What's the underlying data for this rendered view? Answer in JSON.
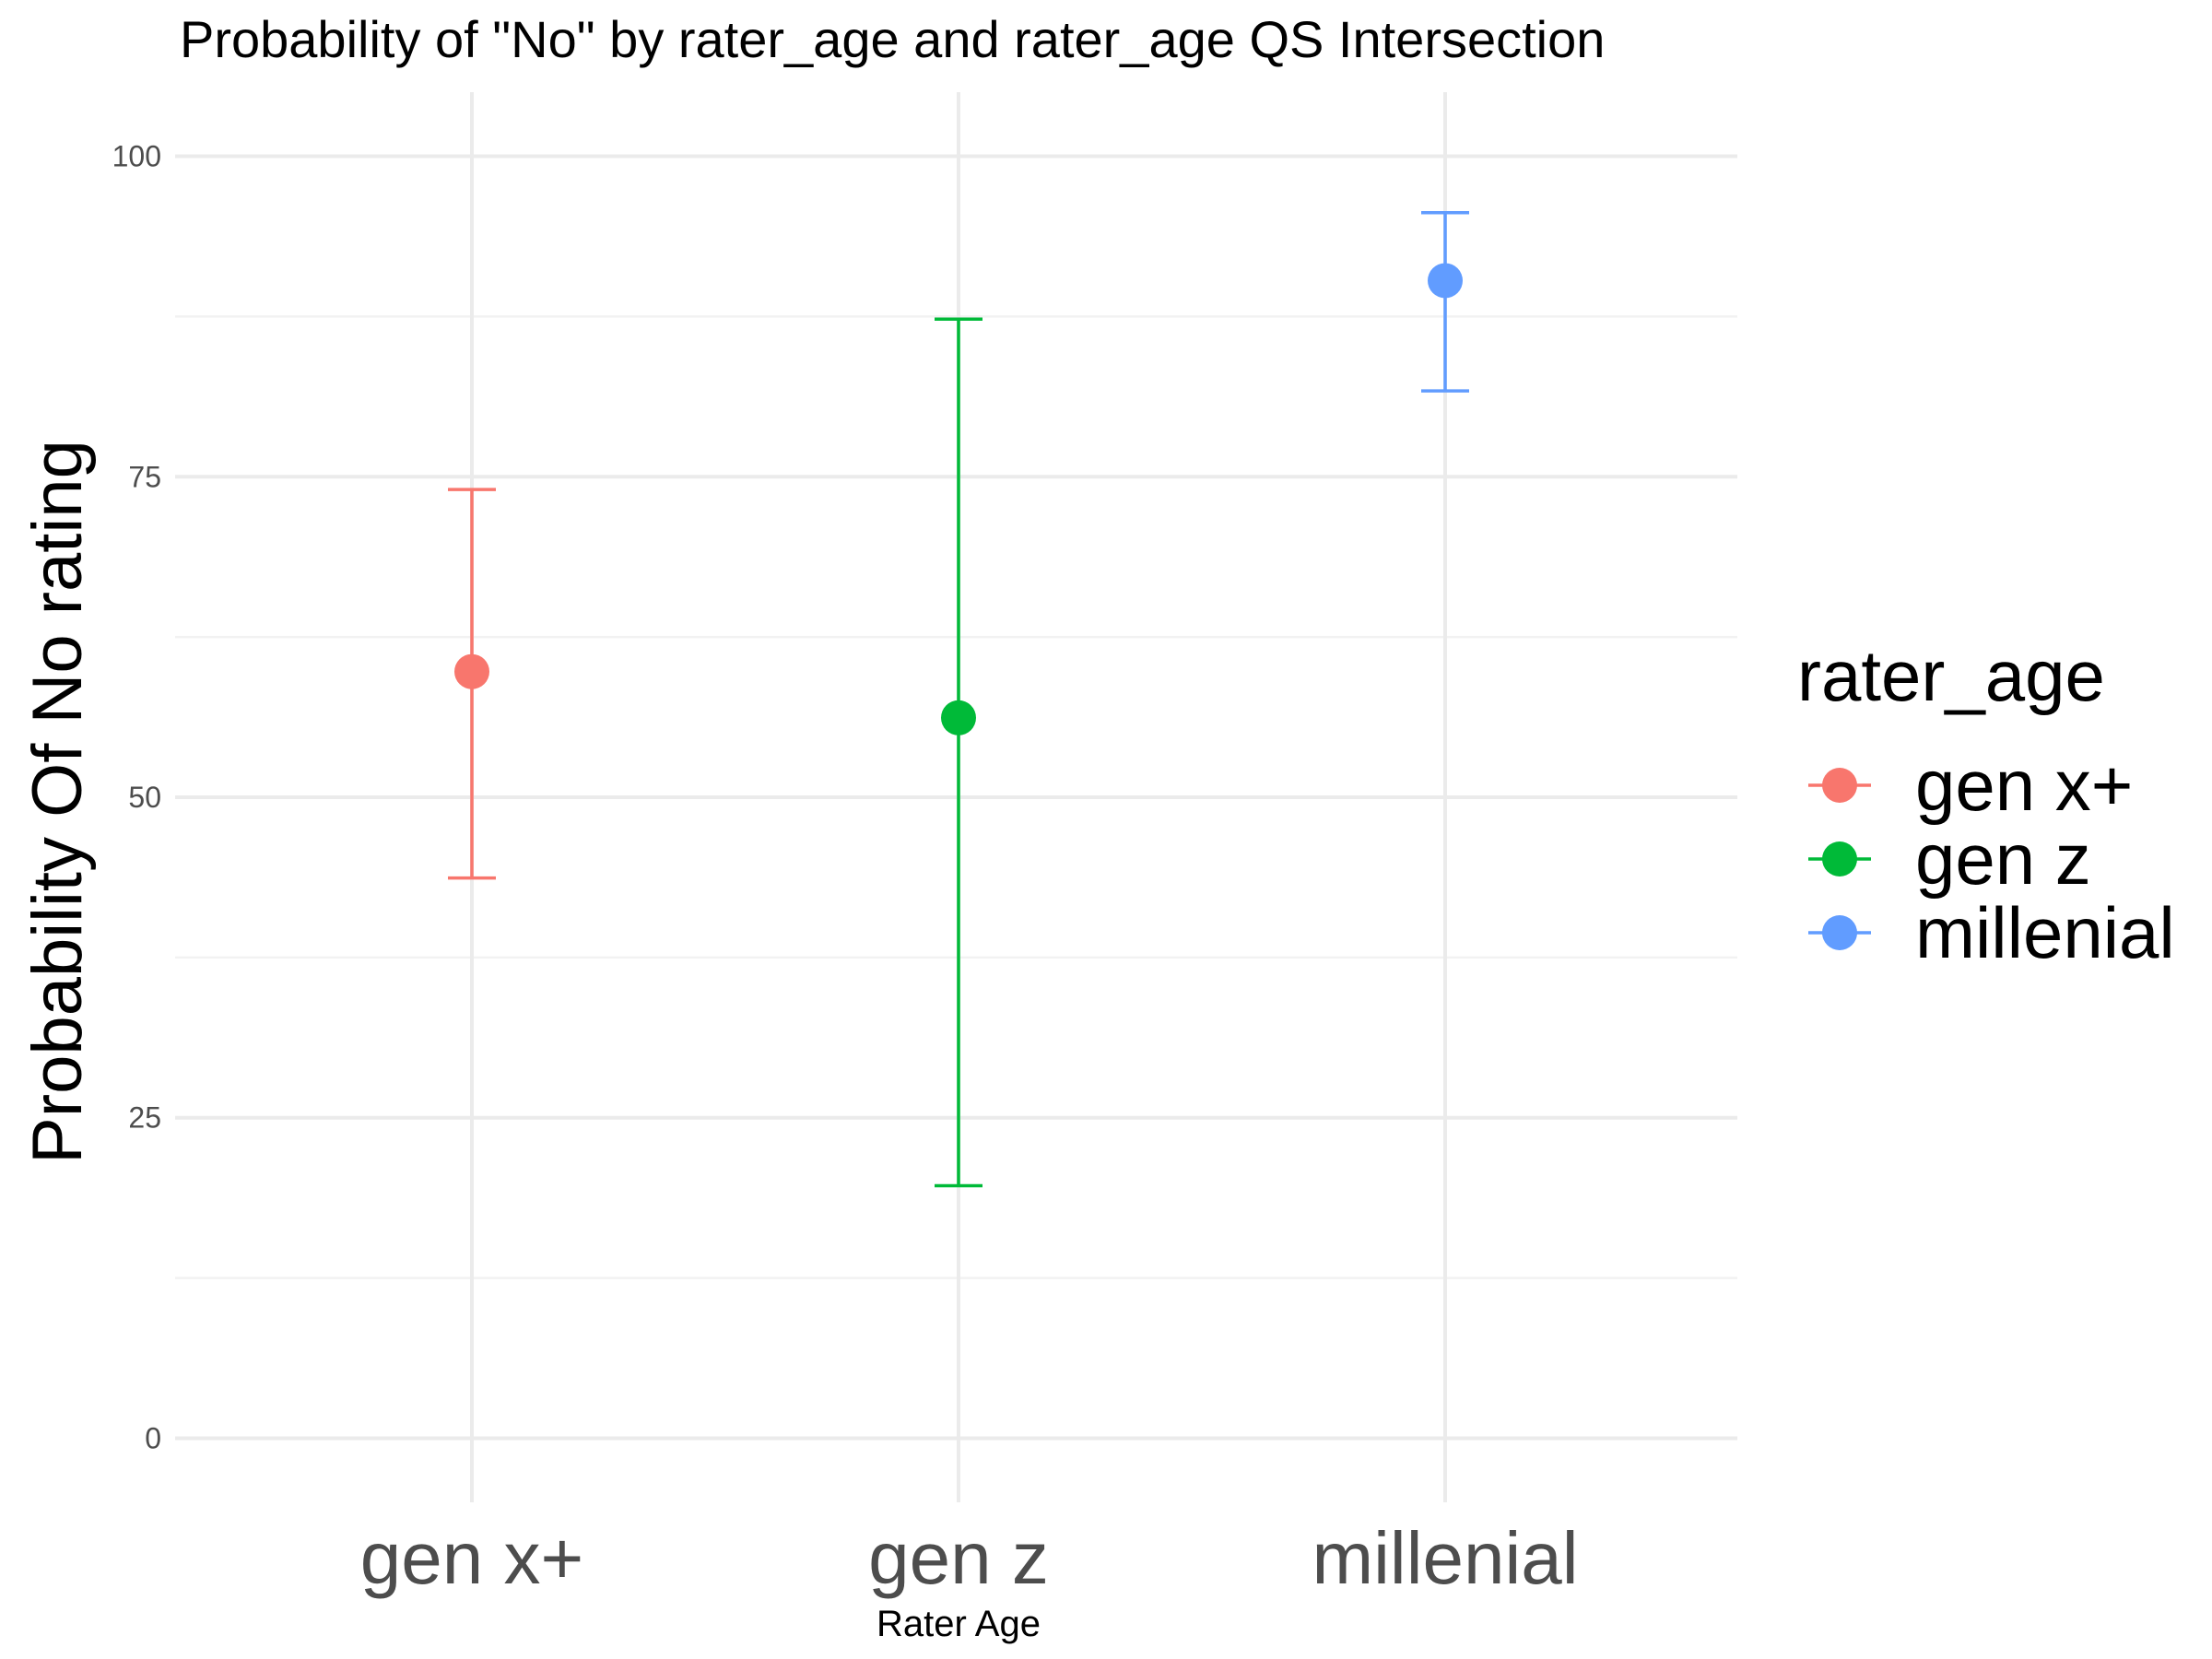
{
  "chart_data": {
    "type": "scatter",
    "title": "Probability of \"No\" by rater_age and  rater_age  QS Intersection",
    "xlabel": "Rater Age",
    "ylabel": "Probability Of No rating",
    "categories": [
      "gen x+",
      "gen z",
      "millenial"
    ],
    "ylim": [
      -5,
      105
    ],
    "yticks": [
      0,
      25,
      50,
      75,
      100
    ],
    "grid": true,
    "legend": {
      "title": "rater_age",
      "position": "right"
    },
    "series": [
      {
        "name": "gen x+",
        "x": "gen x+",
        "value": 59.8,
        "lower": 43.7,
        "upper": 74.0,
        "color": "#F8766D"
      },
      {
        "name": "gen z",
        "x": "gen z",
        "value": 56.2,
        "lower": 19.7,
        "upper": 87.3,
        "color": "#00BA38"
      },
      {
        "name": "millenial",
        "x": "millenial",
        "value": 90.3,
        "lower": 81.7,
        "upper": 95.6,
        "color": "#619CFF"
      }
    ]
  }
}
